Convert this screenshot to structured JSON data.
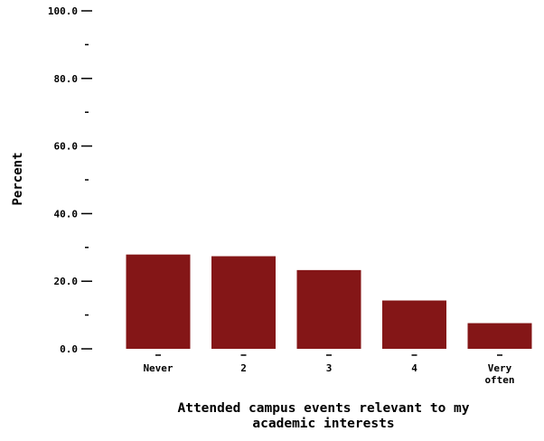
{
  "chart_data": {
    "type": "bar",
    "categories": [
      "Never",
      "2",
      "3",
      "4",
      "Very often"
    ],
    "category_lines": [
      [
        "Never"
      ],
      [
        "2"
      ],
      [
        "3"
      ],
      [
        "4"
      ],
      [
        "Very",
        "often"
      ]
    ],
    "values": [
      27.9,
      27.4,
      23.3,
      14.3,
      7.6
    ],
    "xlabel": "Attended campus events relevant to my academic interests",
    "xlabel_lines": [
      "Attended campus events relevant to my",
      "academic interests"
    ],
    "ylabel": "Percent",
    "ylim": [
      0,
      100
    ],
    "y_major_ticks": [
      "0.0",
      "20.0",
      "40.0",
      "60.0",
      "80.0",
      "100.0"
    ],
    "y_minor_ticks": [
      10,
      30,
      50,
      70,
      90
    ],
    "bar_color": "#841617",
    "grid": false,
    "legend": "none"
  }
}
